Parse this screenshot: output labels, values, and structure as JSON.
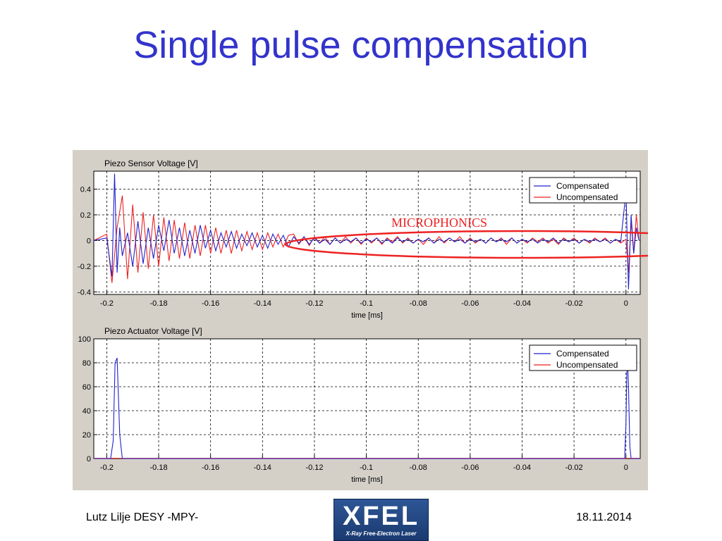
{
  "slide": {
    "title": "Single pulse compensation",
    "footer_left": "Lutz Lilje   DESY -MPY-",
    "footer_right": "18.11.2014",
    "logo_text": "XFEL",
    "logo_subtext": "X-Ray Free-Electron Laser"
  },
  "annotation": {
    "text": "MICROPHONICS",
    "color": "#ee2222"
  },
  "chart_data": [
    {
      "type": "line",
      "title": "Piezo Sensor Voltage [V]",
      "xlabel": "time [ms]",
      "ylabel": "",
      "xlim": [
        -0.205,
        0.0055
      ],
      "ylim": [
        -0.42,
        0.54
      ],
      "xticks": [
        -0.2,
        -0.18,
        -0.16,
        -0.14,
        -0.12,
        -0.1,
        -0.08,
        -0.06,
        -0.04,
        -0.02,
        0
      ],
      "xtick_labels": [
        "-0.2",
        "-0.18",
        "-0.16",
        "-0.14",
        "-0.12",
        "-0.1",
        "-0.08",
        "-0.06",
        "-0.04",
        "-0.02",
        "0"
      ],
      "yticks": [
        -0.4,
        -0.2,
        0,
        0.2,
        0.4
      ],
      "ytick_labels": [
        "-0.4",
        "-0.2",
        "0",
        "0.2",
        "0.4"
      ],
      "grid": true,
      "legend_position": "top-right",
      "series": [
        {
          "name": "Compensated",
          "color": "#2222cc",
          "x": [
            -0.205,
            -0.2,
            -0.198,
            -0.197,
            -0.196,
            -0.195,
            -0.194,
            -0.192,
            -0.19,
            -0.188,
            -0.186,
            -0.184,
            -0.182,
            -0.18,
            -0.178,
            -0.176,
            -0.174,
            -0.172,
            -0.17,
            -0.168,
            -0.166,
            -0.164,
            -0.162,
            -0.16,
            -0.158,
            -0.156,
            -0.154,
            -0.152,
            -0.15,
            -0.148,
            -0.146,
            -0.144,
            -0.142,
            -0.14,
            -0.138,
            -0.136,
            -0.134,
            -0.132,
            -0.13,
            -0.128,
            -0.126,
            -0.124,
            -0.122,
            -0.12,
            -0.118,
            -0.116,
            -0.114,
            -0.112,
            -0.11,
            -0.108,
            -0.106,
            -0.104,
            -0.102,
            -0.1,
            -0.098,
            -0.096,
            -0.094,
            -0.092,
            -0.09,
            -0.088,
            -0.086,
            -0.084,
            -0.082,
            -0.08,
            -0.078,
            -0.076,
            -0.074,
            -0.072,
            -0.07,
            -0.068,
            -0.066,
            -0.064,
            -0.062,
            -0.06,
            -0.058,
            -0.056,
            -0.054,
            -0.052,
            -0.05,
            -0.048,
            -0.046,
            -0.044,
            -0.042,
            -0.04,
            -0.038,
            -0.036,
            -0.034,
            -0.032,
            -0.03,
            -0.028,
            -0.026,
            -0.024,
            -0.022,
            -0.02,
            -0.018,
            -0.016,
            -0.014,
            -0.012,
            -0.01,
            -0.008,
            -0.006,
            -0.004,
            -0.002,
            0,
            0.001,
            0.002,
            0.003,
            0.004,
            0.005
          ],
          "values": [
            0,
            0.02,
            -0.28,
            0.52,
            -0.25,
            0.1,
            -0.12,
            0.06,
            -0.2,
            0.15,
            -0.18,
            0.1,
            -0.14,
            0.12,
            -0.08,
            0.16,
            -0.1,
            0.1,
            -0.12,
            0.08,
            -0.1,
            0.12,
            -0.06,
            0.08,
            -0.08,
            0.06,
            -0.05,
            0.07,
            -0.06,
            0.05,
            -0.04,
            0.06,
            -0.05,
            0.04,
            -0.06,
            0.05,
            -0.03,
            0.04,
            -0.05,
            0.03,
            -0.02,
            0.03,
            -0.03,
            0.02,
            -0.02,
            0.01,
            -0.03,
            0.02,
            -0.02,
            0.01,
            -0.01,
            0.02,
            -0.02,
            0.01,
            -0.01,
            0.02,
            -0.02,
            0.01,
            -0.02,
            0.02,
            -0.01,
            0.01,
            -0.02,
            0.01,
            -0.01,
            0.02,
            -0.02,
            0.01,
            -0.01,
            0.02,
            -0.01,
            0.01,
            -0.02,
            0.01,
            -0.01,
            0.01,
            -0.02,
            0.02,
            -0.01,
            0.01,
            -0.01,
            0.02,
            -0.02,
            0.01,
            -0.01,
            0.01,
            -0.02,
            0.01,
            -0.01,
            0.02,
            -0.02,
            0.01,
            -0.01,
            0.01,
            -0.02,
            0.01,
            -0.01,
            0.01,
            -0.01,
            0.01,
            -0.02,
            0.01,
            -0.01,
            0.38,
            -0.38,
            0.2,
            -0.1,
            0.1,
            0
          ]
        },
        {
          "name": "Uncompensated",
          "color": "#ee2222",
          "x": [
            -0.205,
            -0.2,
            -0.198,
            -0.196,
            -0.194,
            -0.192,
            -0.19,
            -0.188,
            -0.186,
            -0.184,
            -0.182,
            -0.18,
            -0.178,
            -0.176,
            -0.174,
            -0.172,
            -0.17,
            -0.168,
            -0.166,
            -0.164,
            -0.162,
            -0.16,
            -0.158,
            -0.156,
            -0.154,
            -0.152,
            -0.15,
            -0.148,
            -0.146,
            -0.144,
            -0.142,
            -0.14,
            -0.138,
            -0.136,
            -0.134,
            -0.132,
            -0.13,
            -0.128,
            -0.126,
            -0.124,
            -0.122,
            -0.12,
            -0.118,
            -0.116,
            -0.114,
            -0.112,
            -0.11,
            -0.108,
            -0.106,
            -0.104,
            -0.102,
            -0.1,
            -0.098,
            -0.096,
            -0.094,
            -0.092,
            -0.09,
            -0.088,
            -0.086,
            -0.084,
            -0.082,
            -0.08,
            -0.078,
            -0.076,
            -0.074,
            -0.072,
            -0.07,
            -0.068,
            -0.066,
            -0.064,
            -0.062,
            -0.06,
            -0.058,
            -0.056,
            -0.054,
            -0.052,
            -0.05,
            -0.048,
            -0.046,
            -0.044,
            -0.042,
            -0.04,
            -0.038,
            -0.036,
            -0.034,
            -0.032,
            -0.03,
            -0.028,
            -0.026,
            -0.024,
            -0.022,
            -0.02,
            -0.018,
            -0.016,
            -0.014,
            -0.012,
            -0.01,
            -0.008,
            -0.006,
            -0.004,
            -0.002,
            0,
            0.001,
            0.002,
            0.003,
            0.004,
            0.005
          ],
          "values": [
            0,
            0.05,
            -0.33,
            0.1,
            0.35,
            -0.3,
            0.28,
            -0.25,
            0.22,
            -0.22,
            0.2,
            -0.2,
            0.18,
            -0.16,
            0.16,
            -0.14,
            0.14,
            -0.14,
            0.12,
            -0.12,
            0.12,
            -0.1,
            0.1,
            -0.1,
            0.08,
            -0.1,
            0.08,
            -0.08,
            0.07,
            -0.07,
            0.06,
            -0.07,
            0.06,
            -0.05,
            0.05,
            -0.05,
            0.04,
            0.05,
            -0.03,
            0.03,
            -0.04,
            0.03,
            -0.02,
            0.03,
            -0.03,
            0.02,
            -0.02,
            0.03,
            -0.02,
            0.02,
            -0.03,
            0.02,
            -0.02,
            0.02,
            -0.03,
            0.02,
            -0.01,
            0.03,
            -0.02,
            0.02,
            -0.02,
            0.01,
            -0.03,
            0.02,
            -0.02,
            0.03,
            -0.02,
            0.02,
            -0.01,
            0.03,
            -0.02,
            0.02,
            -0.02,
            0.01,
            -0.02,
            0.02,
            -0.01,
            0.02,
            -0.03,
            0.02,
            -0.02,
            0.01,
            -0.02,
            0.02,
            -0.01,
            0.02,
            -0.02,
            0.01,
            -0.03,
            0.02,
            -0.01,
            0.02,
            -0.02,
            0.01,
            -0.02,
            0.02,
            -0.01,
            0.02,
            -0.02,
            0.01,
            -0.02,
            0.01,
            -0.25,
            0.15,
            -0.1,
            0.2,
            0
          ]
        }
      ]
    },
    {
      "type": "line",
      "title": "Piezo Actuator Voltage [V]",
      "xlabel": "time [ms]",
      "ylabel": "",
      "xlim": [
        -0.205,
        0.0055
      ],
      "ylim": [
        0,
        100
      ],
      "xticks": [
        -0.2,
        -0.18,
        -0.16,
        -0.14,
        -0.12,
        -0.1,
        -0.08,
        -0.06,
        -0.04,
        -0.02,
        0
      ],
      "xtick_labels": [
        "-0.2",
        "-0.18",
        "-0.16",
        "-0.14",
        "-0.12",
        "-0.1",
        "-0.08",
        "-0.06",
        "-0.04",
        "-0.02",
        "0"
      ],
      "yticks": [
        0,
        20,
        40,
        60,
        80,
        100
      ],
      "ytick_labels": [
        "0",
        "20",
        "40",
        "60",
        "80",
        "100"
      ],
      "grid": true,
      "legend_position": "top-right",
      "series": [
        {
          "name": "Compensated",
          "color": "#2222cc",
          "x": [
            -0.205,
            -0.1985,
            -0.1975,
            -0.1968,
            -0.196,
            -0.195,
            -0.194,
            -0.0005,
            0,
            0.0005,
            0.001,
            0.0015,
            0.002,
            0.0055
          ],
          "values": [
            0,
            0,
            15,
            80,
            84,
            20,
            0,
            0,
            30,
            90,
            60,
            10,
            0,
            0
          ]
        },
        {
          "name": "Uncompensated",
          "color": "#ee2222",
          "x": [
            -0.205,
            0.0055
          ],
          "values": [
            0.3,
            0.3
          ]
        }
      ]
    }
  ]
}
